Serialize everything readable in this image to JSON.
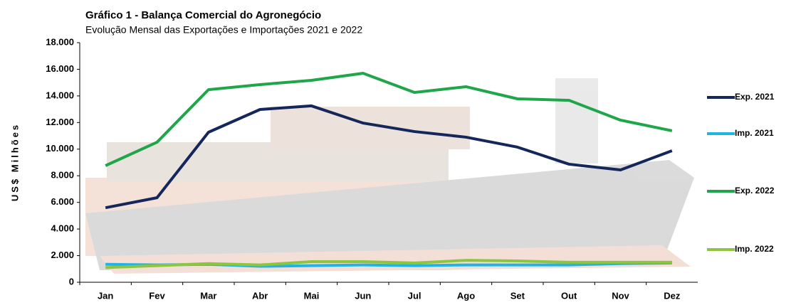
{
  "chart_data": {
    "type": "line",
    "title": "Gráfico 1 - Balança Comercial do Agronegócio",
    "subtitle": "Evolução  Mensal das Exportações e Importações  2021 e 2022",
    "y_label": "US$ Milhões",
    "categories": [
      "Jan",
      "Fev",
      "Mar",
      "Abr",
      "Mai",
      "Jun",
      "Jul",
      "Ago",
      "Set",
      "Out",
      "Nov",
      "Dez"
    ],
    "series": [
      {
        "name": "Exp. 2021",
        "color": "#15275a",
        "values": [
          5600,
          6350,
          11270,
          12980,
          13250,
          11960,
          11320,
          10900,
          10150,
          8870,
          8440,
          9880
        ]
      },
      {
        "name": "Imp. 2021",
        "color": "#1fb4e8",
        "values": [
          1350,
          1300,
          1350,
          1200,
          1250,
          1300,
          1250,
          1300,
          1300,
          1300,
          1400,
          1450
        ]
      },
      {
        "name": "Exp. 2022",
        "color": "#1fa64a",
        "values": [
          8760,
          10520,
          14470,
          14850,
          15170,
          15700,
          14260,
          14690,
          13780,
          13670,
          12180,
          11380
        ]
      },
      {
        "name": "Imp. 2022",
        "color": "#8cc63f",
        "values": [
          1100,
          1250,
          1400,
          1300,
          1550,
          1550,
          1450,
          1650,
          1600,
          1500,
          1500,
          1500
        ]
      }
    ],
    "ylim": [
      0,
      18000
    ],
    "yticks": [
      0,
      {
        "value": 2000,
        "label": "2.000"
      },
      {
        "value": 4000,
        "label": "4.000"
      },
      {
        "value": 6000,
        "label": "6.000"
      },
      {
        "value": 8000,
        "label": "8.000"
      },
      {
        "value": 10000,
        "label": "10.000"
      },
      {
        "value": 12000,
        "label": "12.000"
      },
      {
        "value": 14000,
        "label": "14.000"
      },
      {
        "value": 16000,
        "label": "16.000"
      },
      {
        "value": 18000,
        "label": "18.000"
      }
    ],
    "grid": false
  }
}
